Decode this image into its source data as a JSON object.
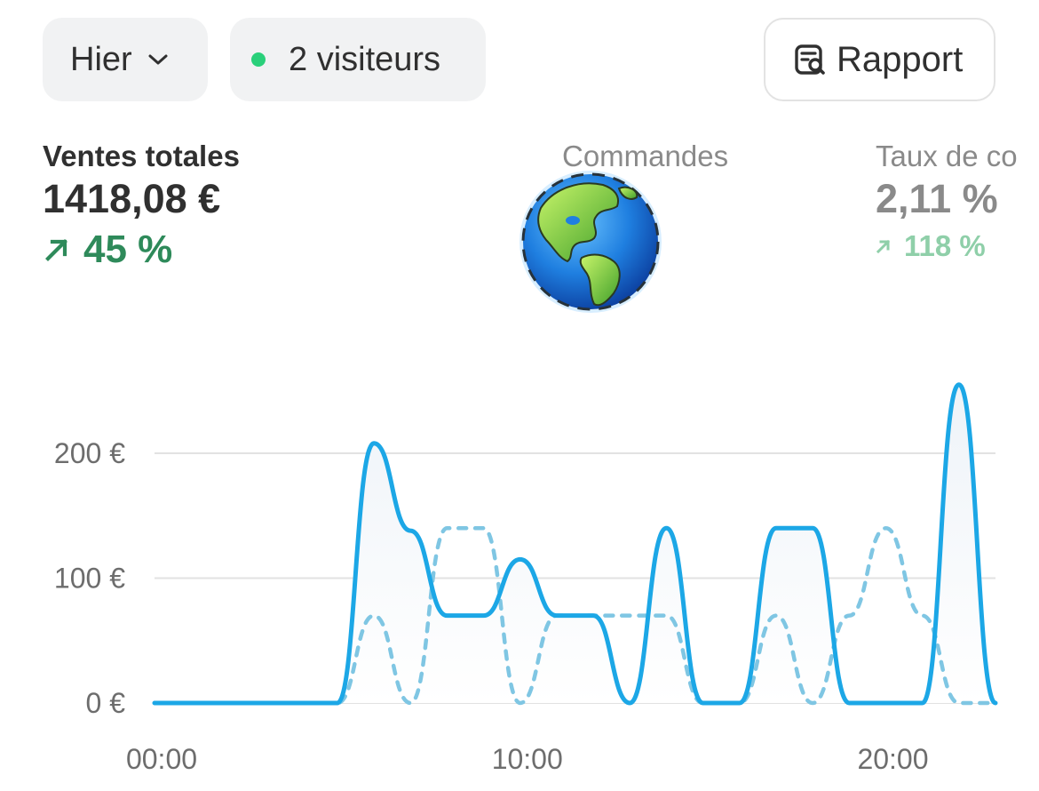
{
  "header": {
    "period_label": "Hier",
    "visitors_label": "2 visiteurs",
    "report_label": "Rapport"
  },
  "icons": {
    "period": "chevron-down-icon",
    "visitors": "live-dot-icon",
    "report": "report-search-icon",
    "overlay": "globe-americas-icon"
  },
  "colors": {
    "live_dot": "#2ad07a",
    "positive": "#2e8a5a",
    "positive_faded": "#8fcfa9",
    "series_current": "#1ca7e6",
    "series_previous": "#7fc6e3"
  },
  "metrics": {
    "sales": {
      "label": "Ventes totales",
      "value": "1418,08 €",
      "change": "45 %"
    },
    "orders": {
      "label": "Commandes"
    },
    "conversion": {
      "label": "Taux de co",
      "value": "2,11 %",
      "change": "118 %"
    }
  },
  "chart_data": {
    "type": "line",
    "x": [
      0,
      1,
      2,
      3,
      4,
      5,
      6,
      7,
      8,
      9,
      10,
      11,
      12,
      13,
      14,
      15,
      16,
      17,
      18,
      19,
      20,
      21,
      22,
      23
    ],
    "series": [
      {
        "style": "solid",
        "values": [
          0,
          0,
          0,
          0,
          0,
          0,
          208,
          138,
          70,
          70,
          115,
          70,
          70,
          0,
          140,
          0,
          0,
          140,
          140,
          0,
          0,
          0,
          255,
          0
        ]
      },
      {
        "style": "dashed",
        "values": [
          0,
          0,
          0,
          0,
          0,
          0,
          70,
          0,
          140,
          140,
          0,
          70,
          70,
          70,
          70,
          0,
          0,
          70,
          0,
          70,
          140,
          70,
          0,
          0
        ]
      }
    ],
    "x_ticks": [
      "00:00",
      "10:00",
      "20:00"
    ],
    "y_ticks": [
      "0 €",
      "100 €",
      "200 €"
    ],
    "ylim": [
      0,
      260
    ],
    "grid": true
  }
}
